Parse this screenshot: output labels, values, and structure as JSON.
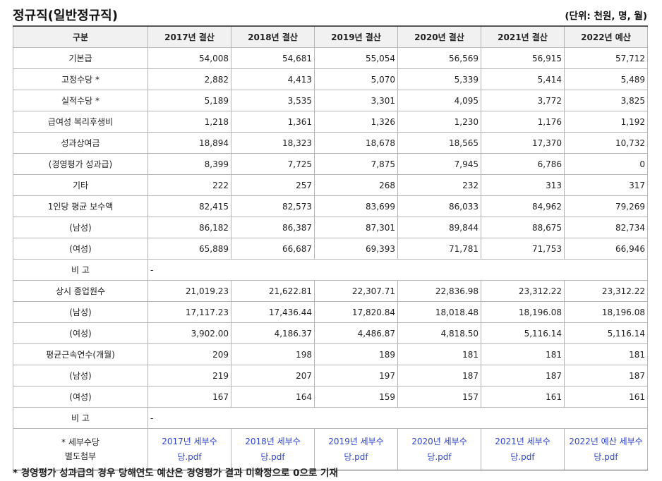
{
  "page": {
    "title": "정규직(일반정규직)",
    "unit": "(단위: 천원, 명, 월)",
    "footnote": "* 경영평가 성과급의 경우 당해연도 예산은 경영평가 결과 미확정으로 0으로 기재"
  },
  "table": {
    "headers": [
      "구분",
      "2017년 결산",
      "2018년 결산",
      "2019년 결산",
      "2020년 결산",
      "2021년 결산",
      "2022년 예산"
    ],
    "rows": [
      {
        "label": "기본급",
        "values": [
          "54,008",
          "54,681",
          "55,054",
          "56,569",
          "56,915",
          "57,712"
        ]
      },
      {
        "label": "고정수당 *",
        "values": [
          "2,882",
          "4,413",
          "5,070",
          "5,339",
          "5,414",
          "5,489"
        ]
      },
      {
        "label": "실적수당 *",
        "values": [
          "5,189",
          "3,535",
          "3,301",
          "4,095",
          "3,772",
          "3,825"
        ]
      },
      {
        "label": "급여성 복리후생비",
        "values": [
          "1,218",
          "1,361",
          "1,326",
          "1,230",
          "1,176",
          "1,192"
        ]
      },
      {
        "label": "성과상여금",
        "values": [
          "18,894",
          "18,323",
          "18,678",
          "18,565",
          "17,370",
          "10,732"
        ]
      },
      {
        "label": "(경영평가 성과급)",
        "values": [
          "8,399",
          "7,725",
          "7,875",
          "7,945",
          "6,786",
          "0"
        ]
      },
      {
        "label": "기타",
        "values": [
          "222",
          "257",
          "268",
          "232",
          "313",
          "317"
        ]
      },
      {
        "label": "1인당 평균 보수액",
        "values": [
          "82,415",
          "82,573",
          "83,699",
          "86,033",
          "84,962",
          "79,269"
        ]
      },
      {
        "label": "(남성)",
        "values": [
          "86,182",
          "86,387",
          "87,301",
          "89,844",
          "88,675",
          "82,734"
        ]
      },
      {
        "label": "(여성)",
        "values": [
          "65,889",
          "66,687",
          "69,393",
          "71,781",
          "71,753",
          "66,946"
        ]
      },
      {
        "label": "비 고",
        "note": "-"
      },
      {
        "label": "상시 종업원수",
        "values": [
          "21,019.23",
          "21,622.81",
          "22,307.71",
          "22,836.98",
          "23,312.22",
          "23,312.22"
        ]
      },
      {
        "label": "(남성)",
        "values": [
          "17,117.23",
          "17,436.44",
          "17,820.84",
          "18,018.48",
          "18,196.08",
          "18,196.08"
        ]
      },
      {
        "label": "(여성)",
        "values": [
          "3,902.00",
          "4,186.37",
          "4,486.87",
          "4,818.50",
          "5,116.14",
          "5,116.14"
        ]
      },
      {
        "label": "평균근속연수(개월)",
        "values": [
          "209",
          "198",
          "189",
          "181",
          "181",
          "181"
        ]
      },
      {
        "label": "(남성)",
        "values": [
          "219",
          "207",
          "197",
          "187",
          "187",
          "187"
        ]
      },
      {
        "label": "(여성)",
        "values": [
          "167",
          "164",
          "159",
          "157",
          "161",
          "161"
        ]
      },
      {
        "label": "비 고",
        "note": "-"
      }
    ],
    "attachment_row": {
      "label_line1": "* 세부수당",
      "label_line2": "별도첨부",
      "files": [
        "2017년 세부수당.pdf",
        "2018년 세부수당.pdf",
        "2019년 세부수당.pdf",
        "2020년 세부수당.pdf",
        "2021년 세부수당.pdf",
        "2022년 예산 세부수당.pdf"
      ]
    }
  }
}
